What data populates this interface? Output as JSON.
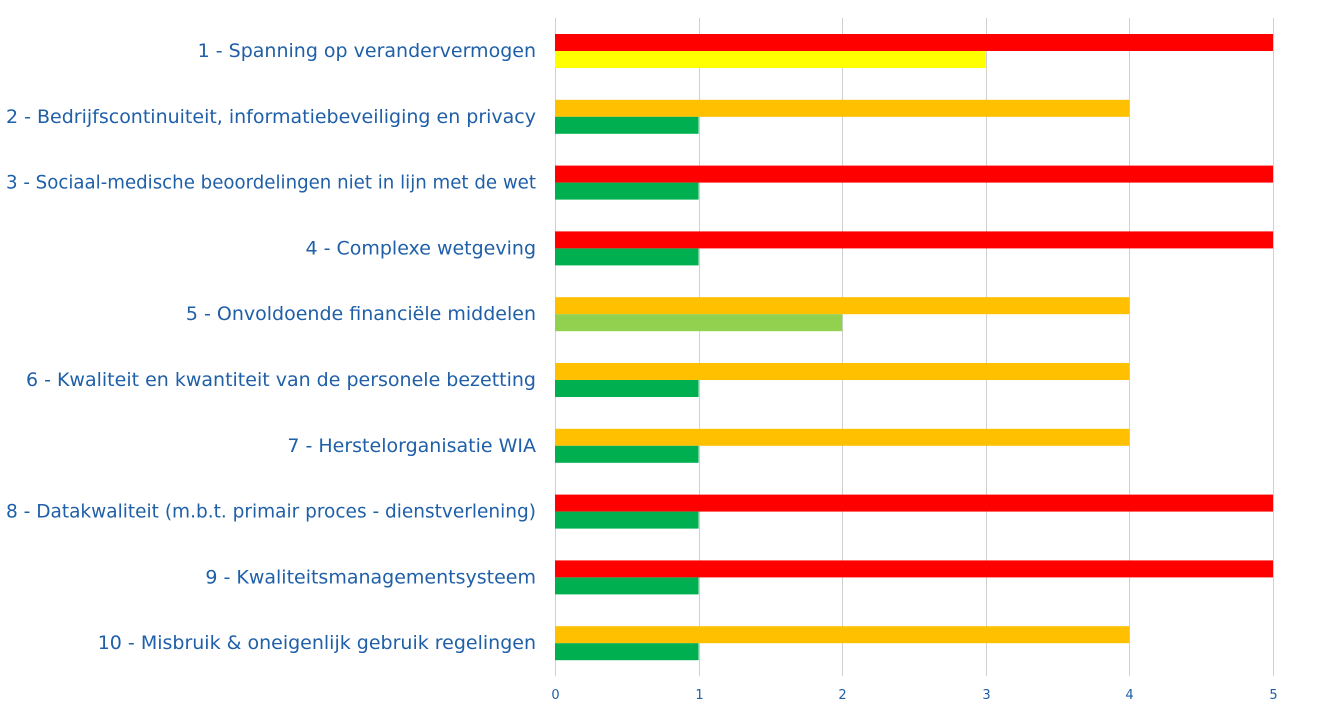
{
  "chart_data": {
    "type": "bar",
    "orientation": "horizontal",
    "title": "",
    "xlabel": "",
    "ylabel": "",
    "xlim": [
      0,
      5
    ],
    "x_ticks": [
      "0",
      "1",
      "2",
      "3",
      "4",
      "5"
    ],
    "grid": true,
    "legend": "none",
    "categories": [
      "1 - Spanning op verandervermogen",
      "2 - Bedrijfscontinuiteit, informatiebeveiliging en privacy",
      "3 - Sociaal-medische beoordelingen niet in lijn met de wet",
      "4 - Complexe wetgeving",
      "5 - Onvoldoende financiële middelen",
      "6 - Kwaliteit en kwantiteit van de personele bezetting",
      "7 - Herstelorganisatie WIA",
      "8 - Datakwaliteit (m.b.t. primair proces - dienstverlening)",
      "9 - Kwaliteitsmanagementsysteem",
      "10 - Misbruik & oneigenlijk gebruik regelingen"
    ],
    "series": [
      {
        "name": "series-1",
        "values": [
          5,
          4,
          5,
          5,
          4,
          4,
          4,
          5,
          5,
          4
        ],
        "colors": [
          "#ff0000",
          "#ffc000",
          "#ff0000",
          "#ff0000",
          "#ffc000",
          "#ffc000",
          "#ffc000",
          "#ff0000",
          "#ff0000",
          "#ffc000"
        ]
      },
      {
        "name": "series-2",
        "values": [
          3,
          1,
          1,
          1,
          2,
          1,
          1,
          1,
          1,
          1
        ],
        "colors": [
          "#ffff00",
          "#00b050",
          "#00b050",
          "#00b050",
          "#92d050",
          "#00b050",
          "#00b050",
          "#00b050",
          "#00b050",
          "#00b050"
        ]
      }
    ]
  }
}
